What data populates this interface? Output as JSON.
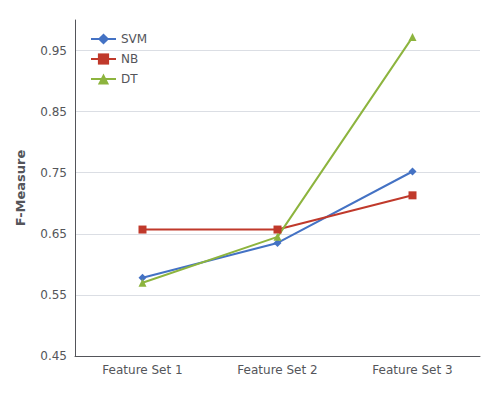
{
  "chart_data": {
    "type": "line",
    "categories": [
      "Feature Set 1",
      "Feature Set 2",
      "Feature Set 3"
    ],
    "series": [
      {
        "name": "SVM",
        "color": "#4472C4",
        "marker": "diamond",
        "values": [
          0.578,
          0.635,
          0.752
        ]
      },
      {
        "name": "NB",
        "color": "#C0392B",
        "marker": "square",
        "values": [
          0.657,
          0.657,
          0.713
        ]
      },
      {
        "name": "DT",
        "color": "#8DB43E",
        "marker": "triangle",
        "values": [
          0.57,
          0.645,
          0.972
        ]
      }
    ],
    "ylabel": "F-Measure",
    "ylim": [
      0.45,
      1.0
    ],
    "yticks": [
      0.45,
      0.55,
      0.65,
      0.75,
      0.85,
      0.95
    ],
    "grid": true,
    "legend": "upper left"
  }
}
